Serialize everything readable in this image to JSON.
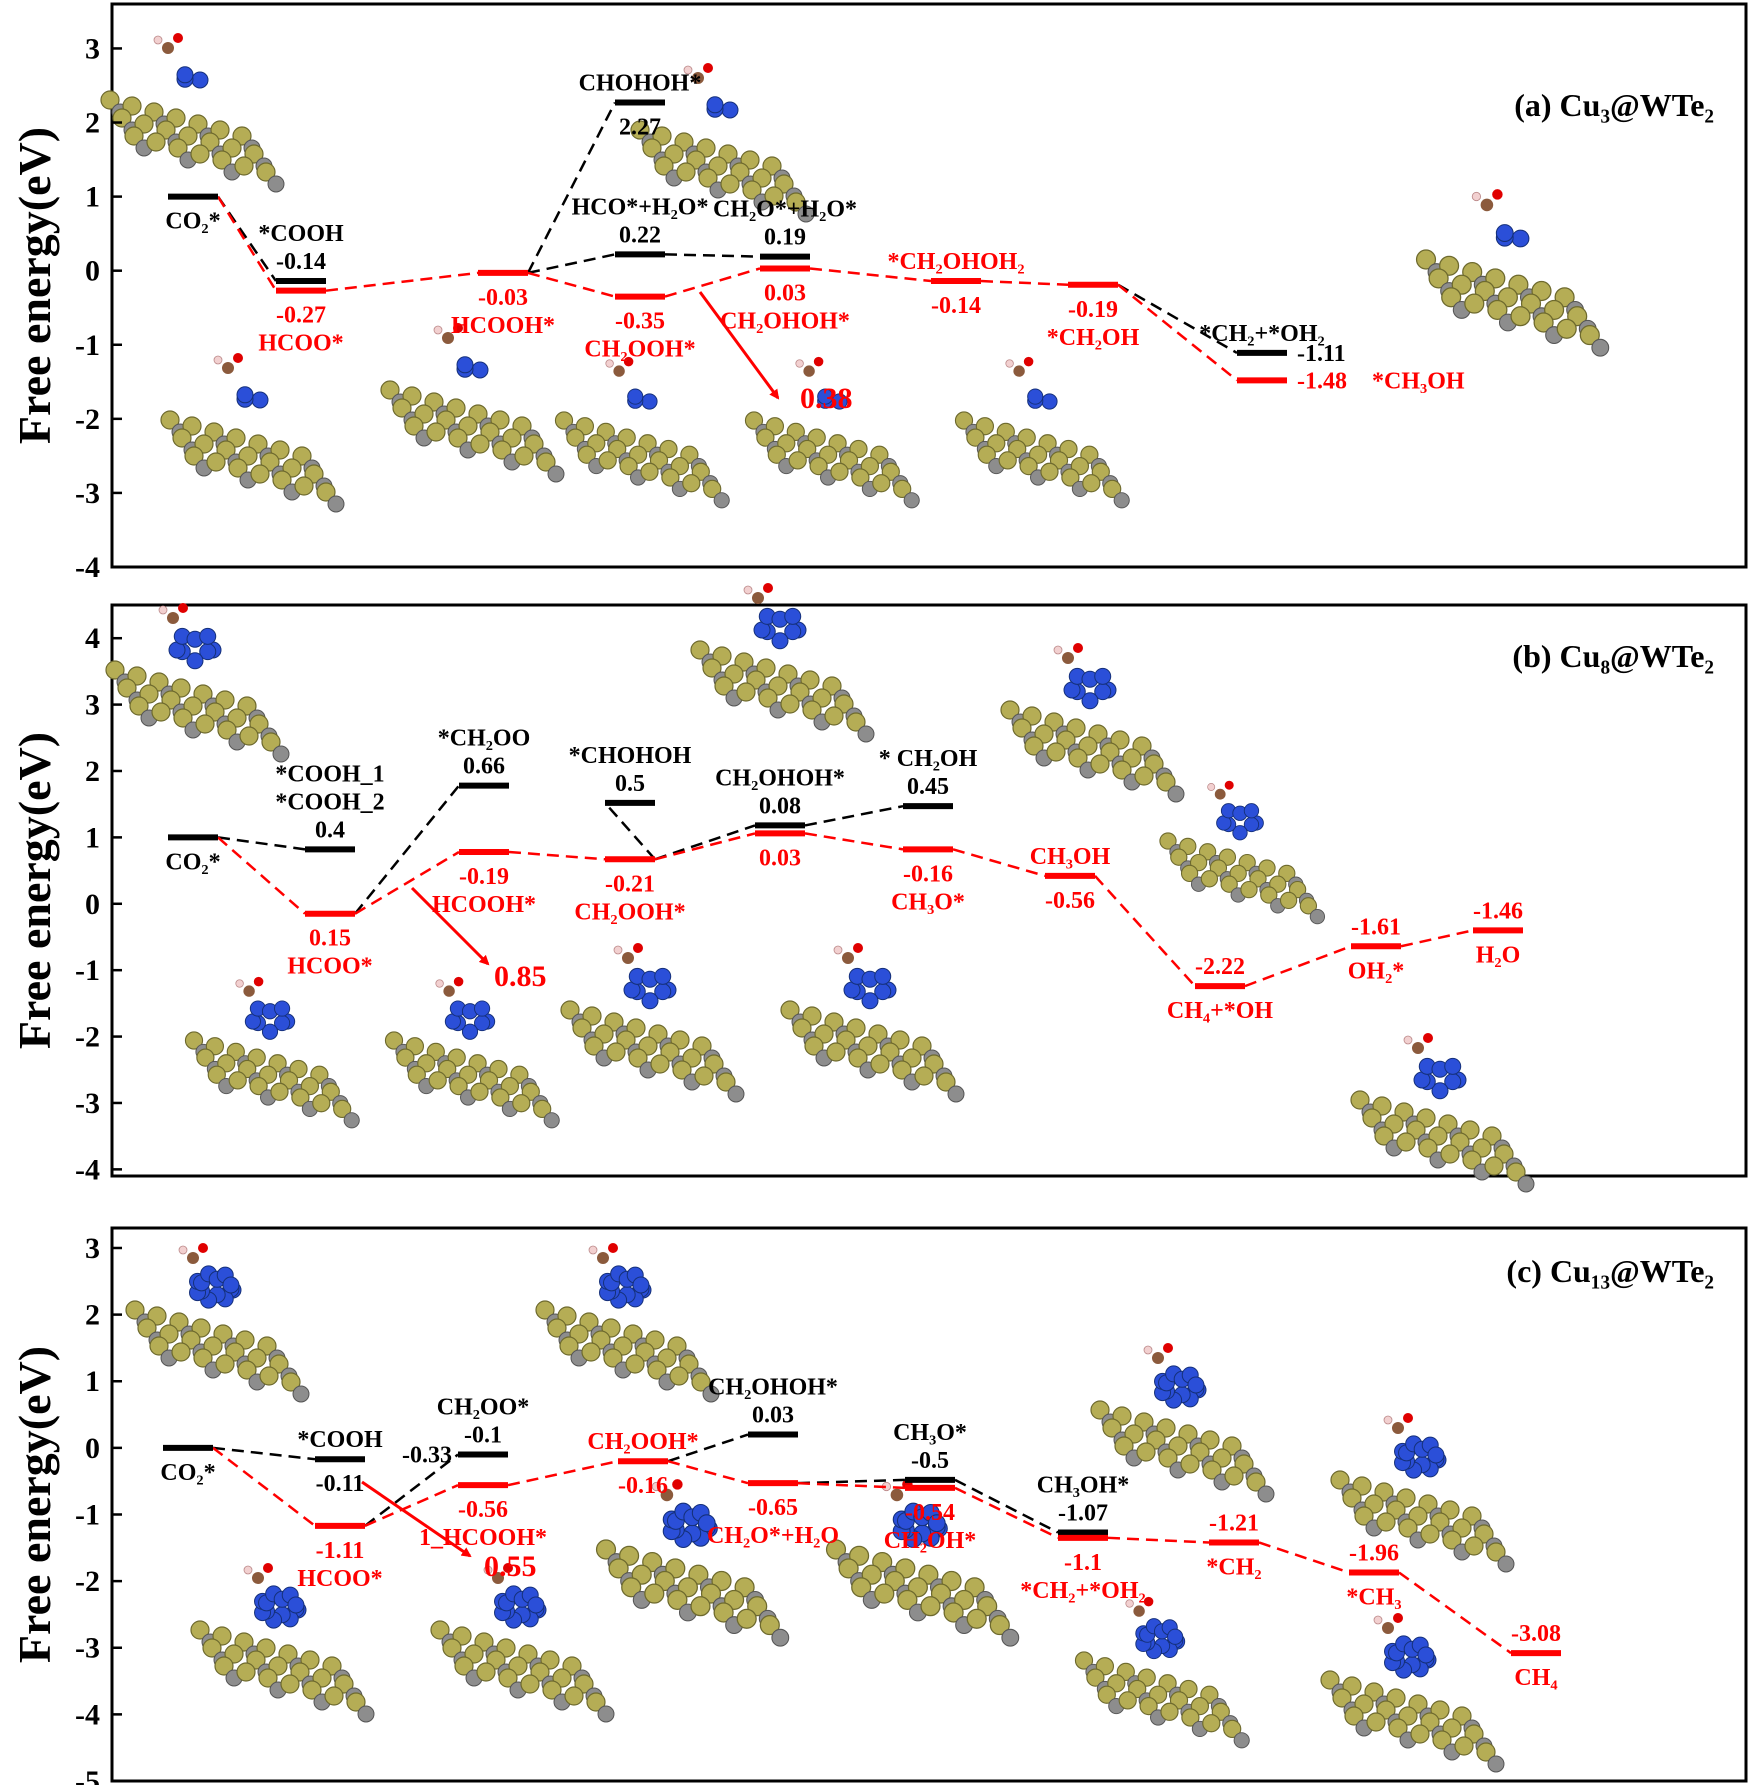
{
  "colors": {
    "red": "#ff0000",
    "black": "#000000",
    "tellurium": "#b5ad55",
    "tungsten": "#8d8d8d",
    "copper": "#2b4fd8",
    "oxygen": "#e00000",
    "carbon": "#8b5a3c",
    "hydrogen": "#f2d0d0"
  },
  "y_axis_label": "Free  energy(eV)",
  "chart_data": [
    {
      "id": "a",
      "type": "line",
      "title": "(a) Cu₃@WTe₂",
      "ylabel": "Free  energy(eV)",
      "ylim": [
        -4,
        3.6
      ],
      "yticks": [
        3,
        2,
        1,
        0,
        -1,
        -2,
        -3,
        -4
      ],
      "barrier": "0.38",
      "levels": [
        {
          "id": "a_co2",
          "x": 1,
          "y": 1.0,
          "color": "black",
          "labels": [
            {
              "t": "CO₂*",
              "c": "black",
              "pos": "below"
            }
          ]
        },
        {
          "id": "a_cooh",
          "x": 2,
          "y": -0.14,
          "color": "black",
          "labels": [
            {
              "t": "*COOH",
              "c": "black",
              "pos": "above2"
            },
            {
              "t": "-0.14",
              "c": "black",
              "pos": "above"
            }
          ]
        },
        {
          "id": "a_hcoo",
          "x": 2,
          "y": -0.27,
          "color": "red",
          "labels": [
            {
              "t": "-0.27",
              "c": "red",
              "pos": "below"
            },
            {
              "t": "HCOO*",
              "c": "red",
              "pos": "below2"
            }
          ]
        },
        {
          "id": "a_hcooh",
          "x": 3,
          "y": -0.03,
          "color": "red",
          "labels": [
            {
              "t": "-0.03",
              "c": "red",
              "pos": "below"
            },
            {
              "t": "HCOOH*",
              "c": "red",
              "pos": "below2"
            }
          ]
        },
        {
          "id": "a_chohoh",
          "x": 4,
          "y": 2.27,
          "color": "black",
          "labels": [
            {
              "t": "CHOHOH*",
              "c": "black",
              "pos": "above"
            },
            {
              "t": "2.27",
              "c": "black",
              "pos": "below"
            }
          ]
        },
        {
          "id": "a_hco",
          "x": 4,
          "y": 0.22,
          "color": "black",
          "labels": [
            {
              "t": "HCO*+H₂O*",
              "c": "black",
              "pos": "above2"
            },
            {
              "t": "0.22",
              "c": "black",
              "pos": "above"
            }
          ]
        },
        {
          "id": "a_ch2ooh",
          "x": 4,
          "y": -0.35,
          "color": "red",
          "labels": [
            {
              "t": "-0.35",
              "c": "red",
              "pos": "below"
            },
            {
              "t": "CH₂OOH*",
              "c": "red",
              "pos": "below2"
            }
          ]
        },
        {
          "id": "a_ch2o",
          "x": 5,
          "y": 0.19,
          "color": "black",
          "labels": [
            {
              "t": "CH₂O*+H₂O*",
              "c": "black",
              "pos": "above2"
            },
            {
              "t": "0.19",
              "c": "black",
              "pos": "above"
            }
          ]
        },
        {
          "id": "a_ch2ohoh",
          "x": 5,
          "y": 0.03,
          "color": "red",
          "labels": [
            {
              "t": "0.03",
              "c": "red",
              "pos": "below"
            },
            {
              "t": "CH₂OHOH*",
              "c": "red",
              "pos": "below2"
            }
          ]
        },
        {
          "id": "a_ch2ohoh2",
          "x": 6,
          "y": -0.14,
          "color": "red",
          "labels": [
            {
              "t": "*CH₂OHOH₂",
              "c": "red",
              "pos": "above"
            },
            {
              "t": "-0.14",
              "c": "red",
              "pos": "below"
            }
          ]
        },
        {
          "id": "a_ch2oh",
          "x": 7,
          "y": -0.19,
          "color": "red",
          "labels": [
            {
              "t": "-0.19",
              "c": "red",
              "pos": "below"
            },
            {
              "t": "*CH₂OH",
              "c": "red",
              "pos": "below2"
            }
          ]
        },
        {
          "id": "a_ch2oh2",
          "x": 8,
          "y": -1.11,
          "color": "black",
          "labels": [
            {
              "t": "*CH₂+*OH₂",
              "c": "black",
              "pos": "above"
            },
            {
              "t": "-1.11",
              "c": "black",
              "pos": "right"
            }
          ]
        },
        {
          "id": "a_ch3oh",
          "x": 8,
          "y": -1.48,
          "color": "red",
          "labels": [
            {
              "t": "-1.48",
              "c": "red",
              "pos": "right"
            },
            {
              "t": "*CH₃OH",
              "c": "red",
              "pos": "right2"
            }
          ]
        }
      ],
      "paths": [
        {
          "color": "black",
          "nodes": [
            "a_co2",
            "a_cooh"
          ]
        },
        {
          "color": "black",
          "nodes": [
            "a_hcooh",
            "a_chohoh"
          ]
        },
        {
          "color": "black",
          "nodes": [
            "a_hcooh",
            "a_hco",
            "a_ch2o"
          ]
        },
        {
          "color": "black",
          "nodes": [
            "a_ch2oh",
            "a_ch2oh2"
          ]
        },
        {
          "color": "red",
          "nodes": [
            "a_co2",
            "a_hcoo",
            "a_hcooh",
            "a_ch2ooh",
            "a_ch2ohoh",
            "a_ch2ohoh2",
            "a_ch2oh",
            "a_ch3oh"
          ]
        }
      ]
    },
    {
      "id": "b",
      "type": "line",
      "title": "(b) Cu₈@WTe₂",
      "ylabel": "Free  energy(eV)",
      "ylim": [
        -4.1,
        4.5
      ],
      "yticks": [
        4,
        3,
        2,
        1,
        0,
        -1,
        -2,
        -3,
        -4
      ],
      "barrier": "0.85",
      "levels": [
        {
          "id": "b_co2",
          "x": 1,
          "y": 1.0,
          "color": "black",
          "labels": [
            {
              "t": "CO₂*",
              "c": "black",
              "pos": "below"
            }
          ]
        },
        {
          "id": "b_cooh",
          "x": 2,
          "y": 0.82,
          "color": "black",
          "labels": [
            {
              "t": "*COOH_1",
              "c": "black",
              "pos": "above3"
            },
            {
              "t": "*COOH_2",
              "c": "black",
              "pos": "above2"
            },
            {
              "t": "0.4",
              "c": "black",
              "pos": "above"
            }
          ]
        },
        {
          "id": "b_hcoo",
          "x": 2,
          "y": -0.15,
          "color": "red",
          "labels": [
            {
              "t": "0.15",
              "c": "red",
              "pos": "below"
            },
            {
              "t": "HCOO*",
              "c": "red",
              "pos": "below2"
            }
          ]
        },
        {
          "id": "b_ch2oo",
          "x": 3,
          "y": 1.78,
          "color": "black",
          "labels": [
            {
              "t": "*CH₂OO",
              "c": "black",
              "pos": "above2"
            },
            {
              "t": "0.66",
              "c": "black",
              "pos": "above"
            }
          ]
        },
        {
          "id": "b_hcooh",
          "x": 3,
          "y": 0.78,
          "color": "red",
          "labels": [
            {
              "t": "-0.19",
              "c": "red",
              "pos": "below"
            },
            {
              "t": "HCOOH*",
              "c": "red",
              "pos": "below2"
            }
          ]
        },
        {
          "id": "b_chohoh",
          "x": 4,
          "y": 1.52,
          "color": "black",
          "labels": [
            {
              "t": "*CHOHOH",
              "c": "black",
              "pos": "above2"
            },
            {
              "t": "0.5",
              "c": "black",
              "pos": "above"
            }
          ]
        },
        {
          "id": "b_ch2ooh",
          "x": 4,
          "y": 0.67,
          "color": "red",
          "labels": [
            {
              "t": "-0.21",
              "c": "red",
              "pos": "below"
            },
            {
              "t": "CH₂OOH*",
              "c": "red",
              "pos": "below2"
            }
          ]
        },
        {
          "id": "b_ch2ohoh_k",
          "x": 5,
          "y": 1.18,
          "color": "black",
          "labels": [
            {
              "t": "CH₂OHOH*",
              "c": "black",
              "pos": "above2"
            },
            {
              "t": "0.08",
              "c": "black",
              "pos": "above"
            }
          ]
        },
        {
          "id": "b_ch2ohoh",
          "x": 5,
          "y": 1.06,
          "color": "red",
          "labels": [
            {
              "t": "0.03",
              "c": "red",
              "pos": "below"
            }
          ]
        },
        {
          "id": "b_ch2oh",
          "x": 6,
          "y": 1.47,
          "color": "black",
          "labels": [
            {
              "t": "* CH₂OH",
              "c": "black",
              "pos": "above2"
            },
            {
              "t": "0.45",
              "c": "black",
              "pos": "above"
            }
          ]
        },
        {
          "id": "b_ch3o",
          "x": 6,
          "y": 0.82,
          "color": "red",
          "labels": [
            {
              "t": "-0.16",
              "c": "red",
              "pos": "below"
            },
            {
              "t": "CH₃O*",
              "c": "red",
              "pos": "below2"
            }
          ]
        },
        {
          "id": "b_ch3oh",
          "x": 7,
          "y": 0.42,
          "color": "red",
          "labels": [
            {
              "t": "CH₃OH",
              "c": "red",
              "pos": "above"
            },
            {
              "t": "-0.56",
              "c": "red",
              "pos": "below"
            }
          ]
        },
        {
          "id": "b_ch4",
          "x": 8,
          "y": -1.24,
          "color": "red",
          "labels": [
            {
              "t": "-2.22",
              "c": "red",
              "pos": "above"
            },
            {
              "t": "CH₄+*OH",
              "c": "red",
              "pos": "below"
            }
          ]
        },
        {
          "id": "b_oh2",
          "x": 9,
          "y": -0.64,
          "color": "red",
          "labels": [
            {
              "t": "-1.61",
              "c": "red",
              "pos": "above"
            },
            {
              "t": "OH₂*",
              "c": "red",
              "pos": "below"
            }
          ]
        },
        {
          "id": "b_h2o",
          "x": 10,
          "y": -0.4,
          "color": "red",
          "labels": [
            {
              "t": "-1.46",
              "c": "red",
              "pos": "above"
            },
            {
              "t": "H₂O",
              "c": "red",
              "pos": "below"
            }
          ]
        }
      ],
      "paths": [
        {
          "color": "black",
          "nodes": [
            "b_co2",
            "b_cooh"
          ]
        },
        {
          "color": "black",
          "nodes": [
            "b_hcoo",
            "b_ch2oo"
          ]
        },
        {
          "color": "black",
          "nodes": [
            "b_ch2ooh",
            "b_chohoh"
          ]
        },
        {
          "color": "black",
          "nodes": [
            "b_ch2ooh",
            "b_ch2ohoh_k",
            "b_ch2oh"
          ]
        },
        {
          "color": "red",
          "nodes": [
            "b_co2",
            "b_hcoo",
            "b_hcooh",
            "b_ch2ooh",
            "b_ch2ohoh",
            "b_ch3o",
            "b_ch3oh",
            "b_ch4",
            "b_oh2",
            "b_h2o"
          ]
        }
      ]
    },
    {
      "id": "c",
      "type": "line",
      "title": "(c) Cu₁₃@WTe₂",
      "ylabel": "Free  energy(eV)",
      "ylim": [
        -5,
        3.3
      ],
      "yticks": [
        3,
        2,
        1,
        0,
        -1,
        -2,
        -3,
        -4,
        -5
      ],
      "barrier": "0.55",
      "levels": [
        {
          "id": "c_co2",
          "x": 1,
          "y": 0.0,
          "color": "black",
          "labels": [
            {
              "t": "CO₂*",
              "c": "black",
              "pos": "below"
            }
          ]
        },
        {
          "id": "c_cooh",
          "x": 2,
          "y": -0.17,
          "color": "black",
          "labels": [
            {
              "t": "*COOH",
              "c": "black",
              "pos": "above"
            },
            {
              "t": "-0.11",
              "c": "black",
              "pos": "below"
            }
          ]
        },
        {
          "id": "c_hcoo",
          "x": 2,
          "y": -1.17,
          "color": "red",
          "labels": [
            {
              "t": "-1.11",
              "c": "red",
              "pos": "below"
            },
            {
              "t": "HCOO*",
              "c": "red",
              "pos": "below2"
            }
          ]
        },
        {
          "id": "c_ch2oo",
          "x": 3,
          "y": -0.1,
          "color": "black",
          "labels": [
            {
              "t": "CH₂OO*",
              "c": "black",
              "pos": "above2"
            },
            {
              "t": "-0.1",
              "c": "black",
              "pos": "above"
            },
            {
              "t": "-0.33",
              "c": "black",
              "pos": "left"
            }
          ]
        },
        {
          "id": "c_hcooh",
          "x": 3,
          "y": -0.56,
          "color": "red",
          "labels": [
            {
              "t": "-0.56",
              "c": "red",
              "pos": "below"
            },
            {
              "t": "1_HCOOH*",
              "c": "red",
              "pos": "below2"
            }
          ]
        },
        {
          "id": "c_ch2ooh",
          "x": 4,
          "y": -0.2,
          "color": "red",
          "labels": [
            {
              "t": "CH₂OOH*",
              "c": "red",
              "pos": "above"
            },
            {
              "t": "-0.16",
              "c": "red",
              "pos": "below"
            }
          ]
        },
        {
          "id": "c_ch2ohoh",
          "x": 5,
          "y": 0.2,
          "color": "black",
          "labels": [
            {
              "t": "CH₂OHOH*",
              "c": "black",
              "pos": "above2"
            },
            {
              "t": "0.03",
              "c": "black",
              "pos": "above"
            }
          ]
        },
        {
          "id": "c_ch2o",
          "x": 5,
          "y": -0.53,
          "color": "red",
          "labels": [
            {
              "t": "-0.65",
              "c": "red",
              "pos": "below"
            },
            {
              "t": "CH₂O*+H₂O",
              "c": "red",
              "pos": "below2"
            }
          ]
        },
        {
          "id": "c_ch3o",
          "x": 6,
          "y": -0.48,
          "color": "black",
          "labels": [
            {
              "t": "CH₃O*",
              "c": "black",
              "pos": "above2"
            },
            {
              "t": "-0.5",
              "c": "black",
              "pos": "above"
            }
          ]
        },
        {
          "id": "c_ch2oh",
          "x": 6,
          "y": -0.6,
          "color": "red",
          "labels": [
            {
              "t": "-0.54",
              "c": "red",
              "pos": "below"
            },
            {
              "t": "CH₂OH*",
              "c": "red",
              "pos": "below2"
            }
          ]
        },
        {
          "id": "c_ch3oh",
          "x": 7,
          "y": -1.27,
          "color": "black",
          "labels": [
            {
              "t": "CH₃OH*",
              "c": "black",
              "pos": "above2"
            },
            {
              "t": "-1.07",
              "c": "black",
              "pos": "above"
            }
          ]
        },
        {
          "id": "c_ch2oh2",
          "x": 7,
          "y": -1.35,
          "color": "red",
          "labels": [
            {
              "t": "-1.1",
              "c": "red",
              "pos": "below"
            },
            {
              "t": "*CH₂+*OH₂",
              "c": "red",
              "pos": "below2"
            }
          ]
        },
        {
          "id": "c_ch2",
          "x": 8,
          "y": -1.42,
          "color": "red",
          "labels": [
            {
              "t": "-1.21",
              "c": "red",
              "pos": "above"
            },
            {
              "t": "*CH₂",
              "c": "red",
              "pos": "below"
            }
          ]
        },
        {
          "id": "c_ch3",
          "x": 9,
          "y": -1.87,
          "color": "red",
          "labels": [
            {
              "t": "-1.96",
              "c": "red",
              "pos": "above"
            },
            {
              "t": "*CH₃",
              "c": "red",
              "pos": "below"
            }
          ]
        },
        {
          "id": "c_ch4",
          "x": 10,
          "y": -3.08,
          "color": "red",
          "labels": [
            {
              "t": "-3.08",
              "c": "red",
              "pos": "above"
            },
            {
              "t": "CH₄",
              "c": "red",
              "pos": "below"
            }
          ]
        }
      ],
      "paths": [
        {
          "color": "black",
          "nodes": [
            "c_co2",
            "c_cooh"
          ]
        },
        {
          "color": "black",
          "nodes": [
            "c_hcoo",
            "c_ch2oo"
          ]
        },
        {
          "color": "black",
          "nodes": [
            "c_ch2ooh",
            "c_ch2ohoh"
          ]
        },
        {
          "color": "black",
          "nodes": [
            "c_ch2o",
            "c_ch3o",
            "c_ch3oh"
          ]
        },
        {
          "color": "red",
          "nodes": [
            "c_co2",
            "c_hcoo",
            "c_hcooh",
            "c_ch2ooh",
            "c_ch2o",
            "c_ch2oh",
            "c_ch2oh2",
            "c_ch2",
            "c_ch3",
            "c_ch4"
          ]
        }
      ]
    }
  ]
}
